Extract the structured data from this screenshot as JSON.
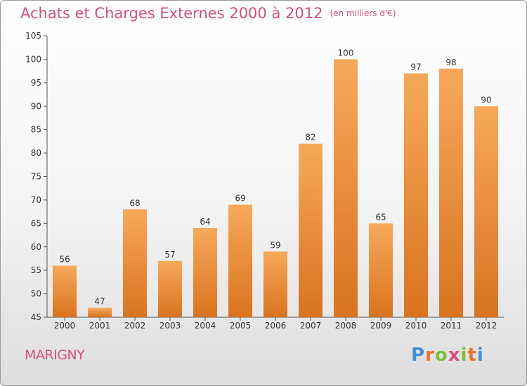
{
  "title": "Achats et Charges Externes 2000 à 2012",
  "unit": "(en milliers d'€)",
  "commune": "MARIGNY",
  "brand": {
    "text": "Proxiti",
    "colors": [
      "#3d8fd9",
      "#e8732a",
      "#7bbf3a",
      "#d94f7c",
      "#7bbf3a",
      "#e8732a",
      "#3d8fd9"
    ]
  },
  "colors": {
    "bar_top": "#f7a95a",
    "bar_bottom": "#d9731f",
    "title": "#d94f7c"
  },
  "chart_data": {
    "type": "bar",
    "categories": [
      "2000",
      "2001",
      "2002",
      "2003",
      "2004",
      "2005",
      "2006",
      "2007",
      "2008",
      "2009",
      "2010",
      "2011",
      "2012"
    ],
    "values": [
      56,
      47,
      68,
      57,
      64,
      69,
      59,
      82,
      100,
      65,
      97,
      98,
      90
    ],
    "ylim": [
      45,
      105
    ],
    "yticks": [
      45,
      50,
      55,
      60,
      65,
      70,
      75,
      80,
      85,
      90,
      95,
      100,
      105
    ],
    "grid": false,
    "data_labels": true
  }
}
